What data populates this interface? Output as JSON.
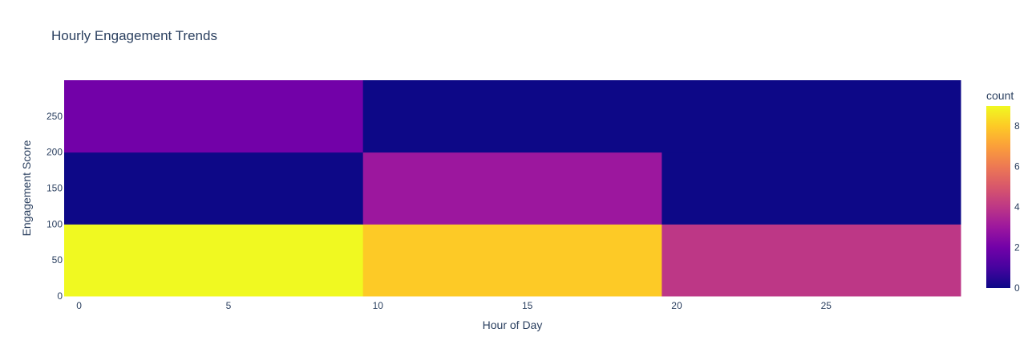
{
  "chart_data": {
    "type": "heatmap",
    "title": "Hourly Engagement Trends",
    "xlabel": "Hour of Day",
    "ylabel": "Engagement Score",
    "x_bins": [
      [
        -0.5,
        9.5
      ],
      [
        9.5,
        19.5
      ],
      [
        19.5,
        29.5
      ]
    ],
    "y_bins": [
      [
        0,
        100
      ],
      [
        100,
        200
      ],
      [
        200,
        300
      ]
    ],
    "z": [
      [
        9,
        8,
        4
      ],
      [
        0,
        3,
        0
      ],
      [
        2,
        0,
        0
      ]
    ],
    "xlim": [
      -0.5,
      29.5
    ],
    "ylim": [
      0,
      300
    ],
    "x_ticks": [
      0,
      5,
      10,
      15,
      20,
      25
    ],
    "y_ticks": [
      0,
      50,
      100,
      150,
      200,
      250
    ],
    "colorbar": {
      "title": "count",
      "range": [
        0,
        9
      ],
      "ticks": [
        0,
        2,
        4,
        6,
        8
      ],
      "colorscale": [
        "#0d0887",
        "#46039f",
        "#7201a8",
        "#9c179e",
        "#bd3786",
        "#d8576b",
        "#ed7953",
        "#fb9f3a",
        "#fdca26",
        "#f0f921"
      ]
    }
  }
}
